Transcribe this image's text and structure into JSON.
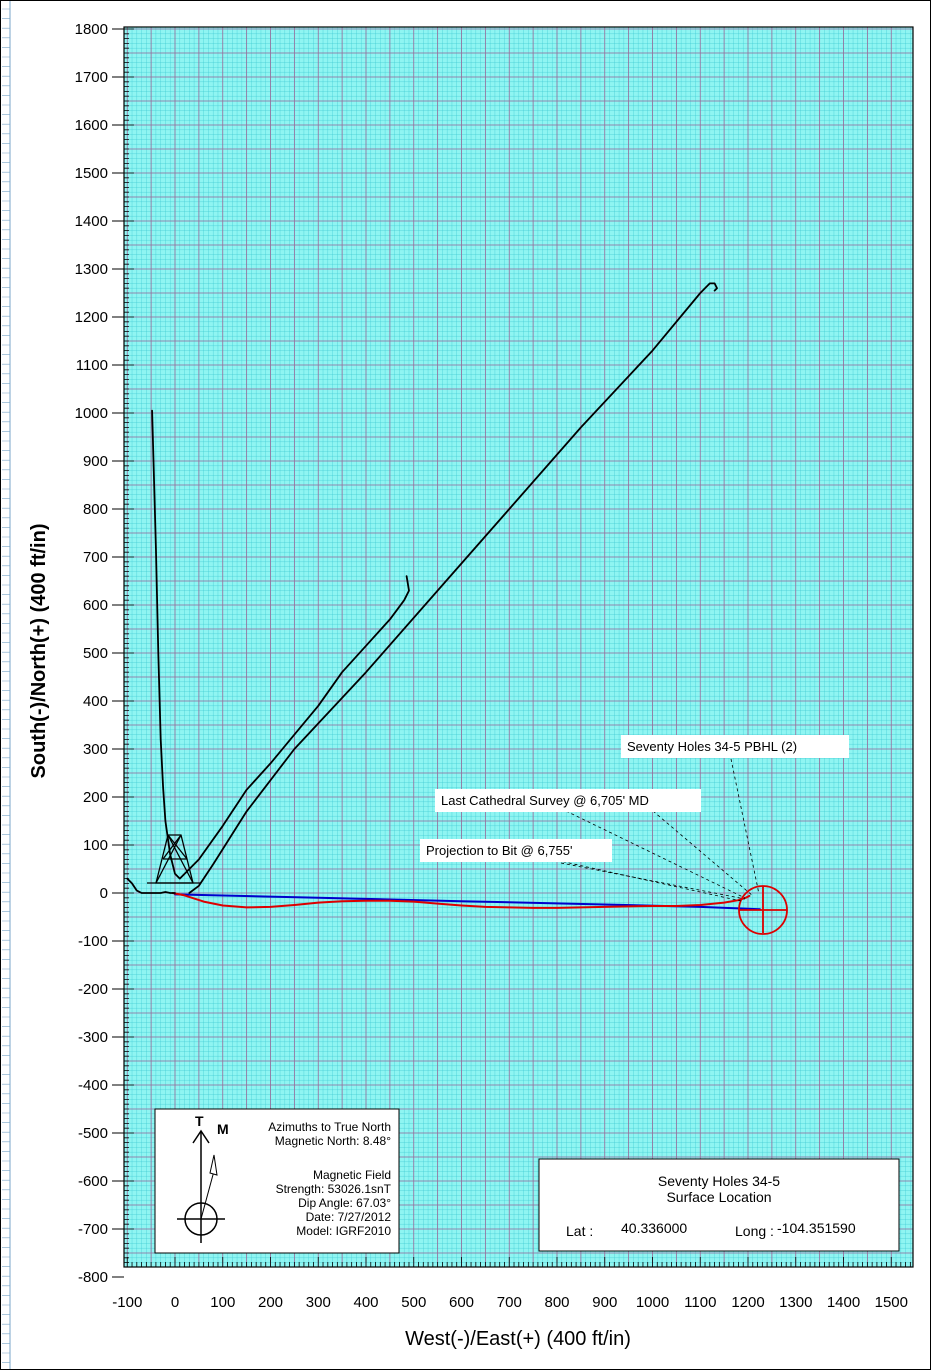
{
  "chart_data": {
    "type": "line",
    "xlabel": "West(-)/East(+) (400 ft/in)",
    "ylabel": "South(-)/North(+) (400 ft/in)",
    "xlim": [
      -100,
      1550
    ],
    "ylim": [
      -800,
      1800
    ],
    "x_ticks": [
      "-100",
      "0",
      "100",
      "200",
      "300",
      "400",
      "500",
      "600",
      "700",
      "800",
      "900",
      "1000",
      "1100",
      "1200",
      "1300",
      "1400",
      "1500"
    ],
    "y_ticks": [
      "1800",
      "1700",
      "1600",
      "1500",
      "1400",
      "1300",
      "1200",
      "1100",
      "1000",
      "900",
      "800",
      "700",
      "600",
      "500",
      "400",
      "300",
      "200",
      "100",
      "0",
      "-100",
      "-200",
      "-300",
      "-400",
      "-500",
      "-600",
      "-700",
      "-800"
    ],
    "grid": true,
    "colors": {
      "background": "#8ff5f2",
      "minor_grid": "#3cc8d2",
      "major_grid": "#9a6a9a",
      "plan": "#0000cc",
      "actual": "#dd0000",
      "offset_wells": "#000000",
      "target": "#dd0000"
    },
    "series": [
      {
        "color": "#0000cc",
        "x": [
          0,
          300,
          600,
          900,
          1100,
          1225
        ],
        "y": [
          -3,
          -10,
          -17,
          -24,
          -29,
          -34
        ]
      },
      {
        "color": "#dd0000",
        "x": [
          -5,
          20,
          60,
          100,
          150,
          200,
          250,
          300,
          350,
          400,
          450,
          500,
          550,
          600,
          650,
          700,
          750,
          800,
          850,
          900,
          950,
          1000,
          1050,
          1100,
          1150,
          1180,
          1195,
          1203
        ],
        "y": [
          0,
          -5,
          -18,
          -26,
          -30,
          -29,
          -25,
          -20,
          -17,
          -16,
          -16,
          -18,
          -22,
          -26,
          -29,
          -30,
          -31,
          -31,
          -30,
          -29,
          -28,
          -27,
          -27,
          -25,
          -20,
          -15,
          -10,
          -6
        ]
      },
      {
        "color": "#000000",
        "x": [
          -48,
          -45,
          -40,
          -35,
          -30,
          -25,
          -20,
          -10,
          0,
          10,
          50,
          100,
          150,
          200,
          250,
          300,
          350,
          400,
          450,
          480,
          490,
          485
        ],
        "y": [
          1005,
          900,
          720,
          500,
          320,
          220,
          150,
          80,
          40,
          30,
          70,
          140,
          215,
          270,
          330,
          390,
          460,
          515,
          570,
          610,
          630,
          660
        ]
      },
      {
        "color": "#000000",
        "x": [
          30,
          50,
          80,
          150,
          250,
          400,
          550,
          700,
          850,
          1000,
          1100,
          1120,
          1130,
          1135,
          1130
        ],
        "y": [
          0,
          15,
          60,
          170,
          300,
          460,
          630,
          800,
          970,
          1130,
          1250,
          1270,
          1270,
          1260,
          1255
        ]
      },
      {
        "color": "#000000",
        "x": [
          -100,
          -90,
          -80,
          -70,
          -60,
          -50,
          -40,
          -30,
          -20,
          -10,
          0
        ],
        "y": [
          30,
          20,
          5,
          0,
          0,
          0,
          0,
          0,
          2,
          0,
          0
        ]
      }
    ]
  },
  "annotations": {
    "pbhl": "Seventy Holes 34-5 PBHL (2)",
    "last_survey": "Last Cathedral Survey @ 6,705' MD",
    "projection": "Projection to Bit @ 6,755'"
  },
  "north_box": {
    "t": "T",
    "m": "M",
    "line1": "Azimuths to True North",
    "line2": "Magnetic North: 8.48°",
    "line3": "Magnetic Field",
    "line4": "Strength: 53026.1snT",
    "line5": "Dip Angle: 67.03°",
    "line6": "Date: 7/27/2012",
    "line7": "Model: IGRF2010"
  },
  "location_box": {
    "title1": "Seventy Holes 34-5",
    "title2": "Surface Location",
    "lat_label": "Lat :",
    "lat_value": "40.336000",
    "long_label": "Long :",
    "long_value": "-104.351590"
  }
}
